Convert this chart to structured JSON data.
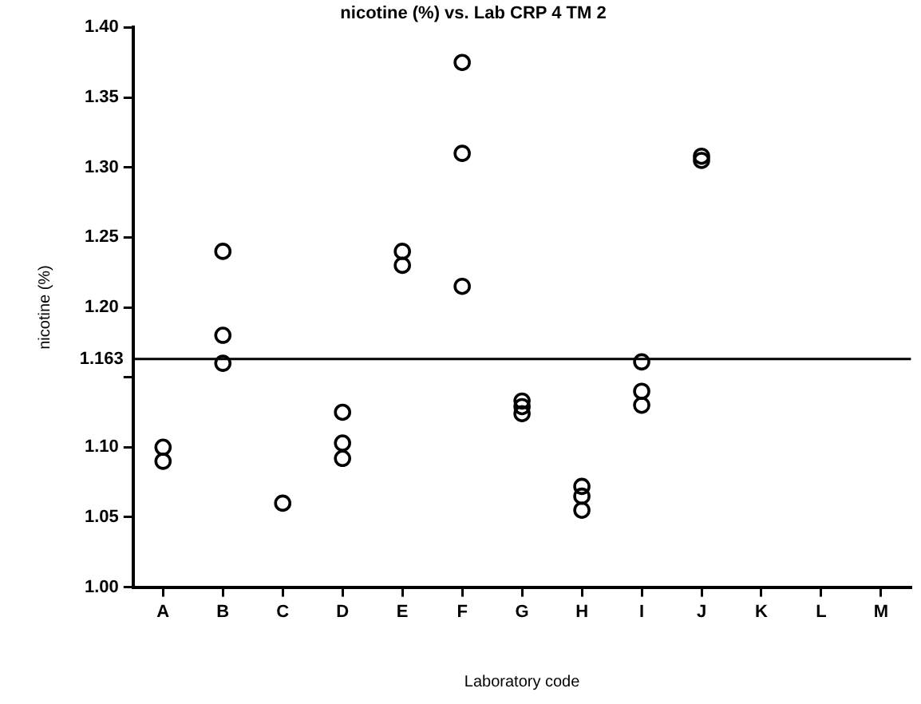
{
  "chart_data": {
    "type": "scatter",
    "title": "nicotine (%) vs. Lab CRP 4 TM 2",
    "xlabel": "Laboratory code",
    "ylabel": "nicotine (%)",
    "categories": [
      "A",
      "B",
      "C",
      "D",
      "E",
      "F",
      "G",
      "H",
      "I",
      "J",
      "K",
      "L",
      "M"
    ],
    "series": [
      {
        "color": "#000000",
        "x": [
          "A",
          "A",
          "B",
          "B",
          "B",
          "C",
          "D",
          "D",
          "D",
          "E",
          "E",
          "F",
          "F",
          "F",
          "G",
          "G",
          "G",
          "H",
          "H",
          "H",
          "I",
          "I",
          "I",
          "J",
          "J"
        ],
        "values": [
          1.1,
          1.09,
          1.24,
          1.18,
          1.16,
          1.06,
          1.125,
          1.103,
          1.092,
          1.24,
          1.23,
          1.375,
          1.31,
          1.215,
          1.133,
          1.129,
          1.124,
          1.072,
          1.065,
          1.055,
          1.161,
          1.14,
          1.13,
          1.308,
          1.305
        ]
      }
    ],
    "ylim": [
      1.0,
      1.4
    ],
    "yticks": [
      {
        "value": 1.0,
        "label": "1.00"
      },
      {
        "value": 1.05,
        "label": "1.05"
      },
      {
        "value": 1.1,
        "label": "1.10"
      },
      {
        "value": 1.15,
        "label": null
      },
      {
        "value": 1.2,
        "label": "1.20"
      },
      {
        "value": 1.25,
        "label": "1.25"
      },
      {
        "value": 1.3,
        "label": "1.30"
      },
      {
        "value": 1.35,
        "label": "1.35"
      },
      {
        "value": 1.4,
        "label": "1.40"
      }
    ],
    "ref_lines": [
      {
        "axis": "y",
        "value": 1.163,
        "label": "1.163",
        "color": "#000000"
      }
    ],
    "marker": "circle",
    "grid": false,
    "legend": false
  }
}
